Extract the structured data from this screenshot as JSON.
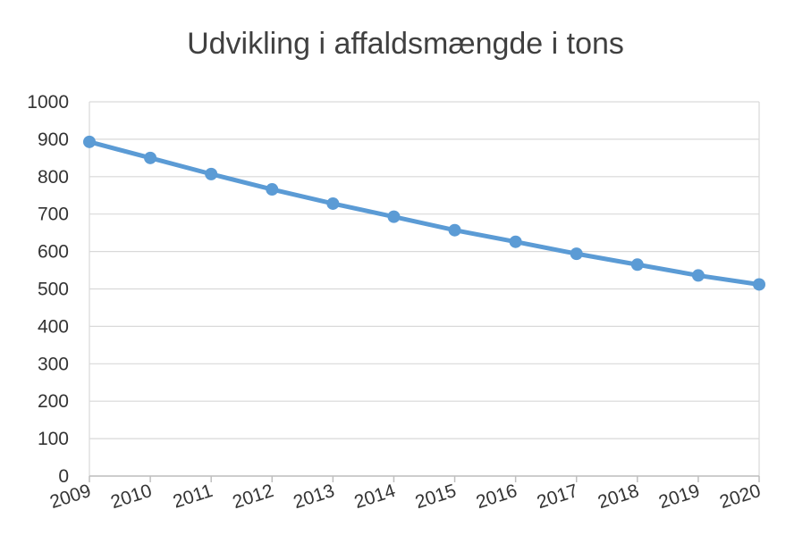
{
  "chart_data": {
    "type": "line",
    "title": "Udvikling i affaldsmængde i tons",
    "xlabel": "",
    "ylabel": "",
    "categories": [
      "2009",
      "2010",
      "2011",
      "2012",
      "2013",
      "2014",
      "2015",
      "2016",
      "2017",
      "2018",
      "2019",
      "2020"
    ],
    "series": [
      {
        "values": [
          893,
          850,
          807,
          766,
          728,
          693,
          657,
          626,
          594,
          565,
          536,
          512
        ]
      }
    ],
    "ylim": [
      0,
      1000
    ],
    "yticks": [
      0,
      100,
      200,
      300,
      400,
      500,
      600,
      700,
      800,
      900,
      1000
    ],
    "grid": true,
    "line_color": "#5b9bd5",
    "legend": "none"
  }
}
